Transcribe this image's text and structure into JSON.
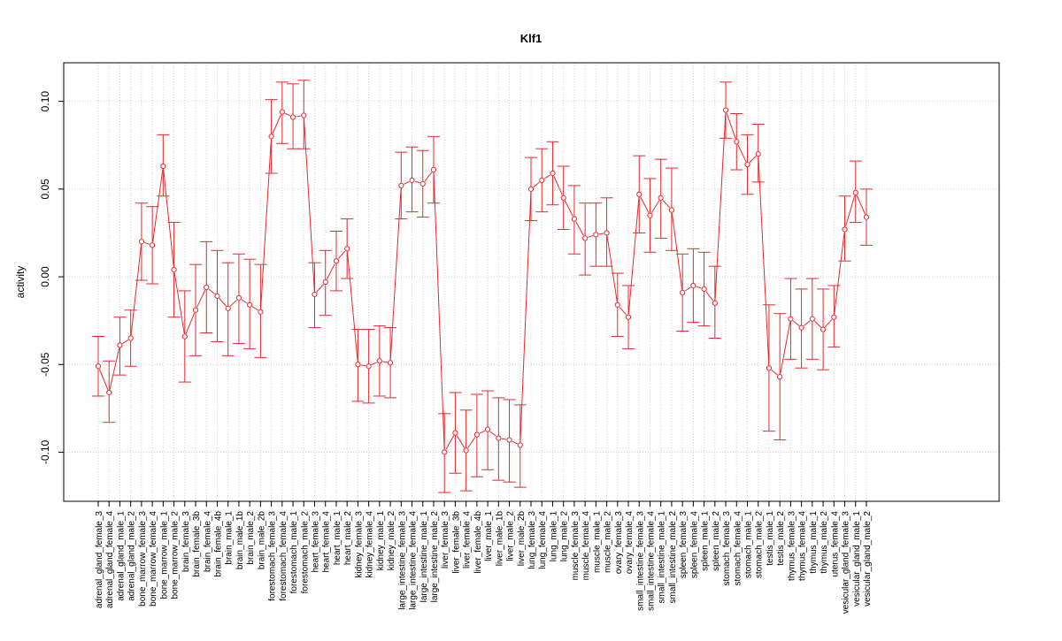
{
  "chart_data": {
    "type": "line",
    "title": "Klf1",
    "xlabel": "",
    "ylabel": "activity",
    "ylim": [
      -0.128,
      0.122
    ],
    "yticks": [
      -0.1,
      -0.05,
      0.0,
      0.05,
      0.1
    ],
    "ytick_labels": [
      "-0.10",
      "-0.05",
      "0.00",
      "0.05",
      "0.10"
    ],
    "grid": true,
    "series_color": "#e8282c",
    "categories": [
      "adrenal_gland_female_3",
      "adrenal_gland_female_4",
      "adrenal_gland_male_1",
      "adrenal_gland_male_2",
      "bone_marrow_female_3",
      "bone_marrow_female_4",
      "bone_marrow_male_1",
      "bone_marrow_male_2",
      "brain_female_3",
      "brain_female_3b",
      "brain_female_4",
      "brain_female_4b",
      "brain_male_1",
      "brain_male_1b",
      "brain_male_2",
      "brain_male_2b",
      "forestomach_female_3",
      "forestomach_female_4",
      "forestomach_male_1",
      "forestomach_male_2",
      "heart_female_3",
      "heart_female_4",
      "heart_male_1",
      "heart_male_2",
      "kidney_female_3",
      "kidney_female_4",
      "kidney_male_1",
      "kidney_male_2",
      "large_intestine_female_3",
      "large_intestine_female_4",
      "large_intestine_male_1",
      "large_intestine_male_2",
      "liver_female_3",
      "liver_female_3b",
      "liver_female_4",
      "liver_female_4b",
      "liver_male_1",
      "liver_male_1b",
      "liver_male_2",
      "liver_male_2b",
      "lung_female_3",
      "lung_female_4",
      "lung_male_1",
      "lung_male_2",
      "muscle_female_3",
      "muscle_female_4",
      "muscle_male_1",
      "muscle_male_2",
      "ovary_female_3",
      "ovary_female_4",
      "small_intestine_female_3",
      "small_intestine_female_4",
      "small_intestine_male_1",
      "small_intestine_male_2",
      "spleen_female_3",
      "spleen_female_4",
      "spleen_male_1",
      "spleen_male_2",
      "stomach_female_3",
      "stomach_female_4",
      "stomach_male_1",
      "stomach_male_2",
      "testis_male_1",
      "testis_male_2",
      "thymus_female_3",
      "thymus_female_4",
      "thymus_male_1",
      "thymus_male_2",
      "uterus_female_4",
      "vesicular_gland_female_3",
      "vesicular_gland_male_1",
      "vesicular_gland_male_2"
    ],
    "values": [
      -0.051,
      -0.066,
      -0.039,
      -0.035,
      0.02,
      0.018,
      0.063,
      0.004,
      -0.034,
      -0.019,
      -0.006,
      -0.011,
      -0.018,
      -0.012,
      -0.016,
      -0.02,
      0.08,
      0.094,
      0.091,
      0.092,
      -0.01,
      -0.003,
      0.009,
      0.016,
      -0.05,
      -0.051,
      -0.048,
      -0.049,
      0.052,
      0.055,
      0.053,
      0.061,
      -0.1,
      -0.089,
      -0.099,
      -0.09,
      -0.087,
      -0.092,
      -0.093,
      -0.096,
      0.05,
      0.055,
      0.059,
      0.045,
      0.033,
      0.022,
      0.024,
      0.025,
      -0.016,
      -0.023,
      0.047,
      0.035,
      0.045,
      0.038,
      -0.009,
      -0.005,
      -0.007,
      -0.015,
      0.095,
      0.077,
      0.064,
      0.07,
      -0.052,
      -0.057,
      -0.024,
      -0.029,
      -0.024,
      -0.03,
      -0.023,
      0.027,
      0.048,
      0.034
    ],
    "lower": [
      -0.068,
      -0.083,
      -0.056,
      -0.051,
      -0.002,
      -0.004,
      0.046,
      -0.023,
      -0.06,
      -0.045,
      -0.032,
      -0.037,
      -0.045,
      -0.038,
      -0.041,
      -0.046,
      0.059,
      0.076,
      0.073,
      0.073,
      -0.029,
      -0.022,
      -0.008,
      -0.001,
      -0.071,
      -0.072,
      -0.068,
      -0.069,
      0.033,
      0.037,
      0.034,
      0.042,
      -0.123,
      -0.112,
      -0.122,
      -0.114,
      -0.11,
      -0.116,
      -0.117,
      -0.12,
      0.032,
      0.037,
      0.041,
      0.027,
      0.013,
      0.001,
      0.006,
      0.006,
      -0.034,
      -0.041,
      0.025,
      0.014,
      0.022,
      0.015,
      -0.031,
      -0.026,
      -0.028,
      -0.035,
      0.079,
      0.061,
      0.047,
      0.054,
      -0.088,
      -0.093,
      -0.047,
      -0.052,
      -0.047,
      -0.053,
      -0.04,
      0.009,
      0.031,
      0.018
    ],
    "upper": [
      -0.034,
      -0.048,
      -0.023,
      -0.019,
      0.042,
      0.04,
      0.081,
      0.031,
      -0.008,
      0.007,
      0.02,
      0.015,
      0.008,
      0.013,
      0.01,
      0.007,
      0.101,
      0.111,
      0.11,
      0.112,
      0.008,
      0.015,
      0.026,
      0.033,
      -0.03,
      -0.03,
      -0.028,
      -0.029,
      0.071,
      0.074,
      0.072,
      0.08,
      -0.078,
      -0.066,
      -0.076,
      -0.067,
      -0.065,
      -0.069,
      -0.07,
      -0.073,
      0.068,
      0.073,
      0.077,
      0.063,
      0.052,
      0.042,
      0.042,
      0.045,
      0.002,
      -0.005,
      0.069,
      0.056,
      0.067,
      0.062,
      0.013,
      0.016,
      0.014,
      0.006,
      0.111,
      0.093,
      0.081,
      0.087,
      -0.016,
      -0.021,
      -0.001,
      -0.007,
      -0.001,
      -0.007,
      -0.005,
      0.046,
      0.066,
      0.05
    ]
  }
}
